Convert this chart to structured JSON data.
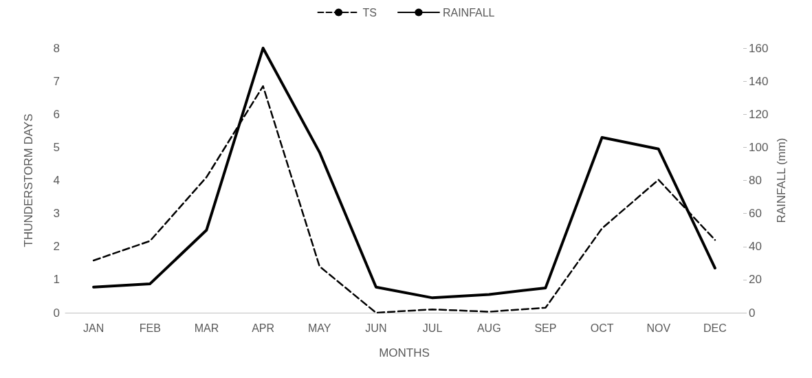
{
  "chart_data": {
    "type": "line",
    "xlabel": "MONTHS",
    "ylabel": "THUNDERSTORM DAYS",
    "y2label": "RAINFALL (mm)",
    "categories": [
      "JAN",
      "FEB",
      "MAR",
      "APR",
      "MAY",
      "JUN",
      "JUL",
      "AUG",
      "SEP",
      "OCT",
      "NOV",
      "DEC"
    ],
    "series": [
      {
        "name": "TS",
        "color": "#000000",
        "line_style": "dashed",
        "values": [
          1.58,
          2.17,
          4.1,
          6.85,
          1.4,
          0,
          0.1,
          0.03,
          0.15,
          2.55,
          4.02,
          2.2
        ]
      },
      {
        "name": "RAINFALL",
        "color": "#000000",
        "line_style": "solid",
        "axis": "y2",
        "values": [
          15.5,
          17.5,
          50,
          160,
          97,
          15.5,
          9,
          11,
          15,
          106,
          99,
          27
        ]
      }
    ],
    "ylim": [
      0,
      8
    ],
    "yticks": [
      0,
      1,
      2,
      3,
      4,
      5,
      6,
      7,
      8
    ],
    "y2lim": [
      0,
      160
    ],
    "y2ticks": [
      0,
      20,
      40,
      60,
      80,
      100,
      120,
      140,
      160
    ],
    "grid": false,
    "legend": "top",
    "marker": "none"
  }
}
